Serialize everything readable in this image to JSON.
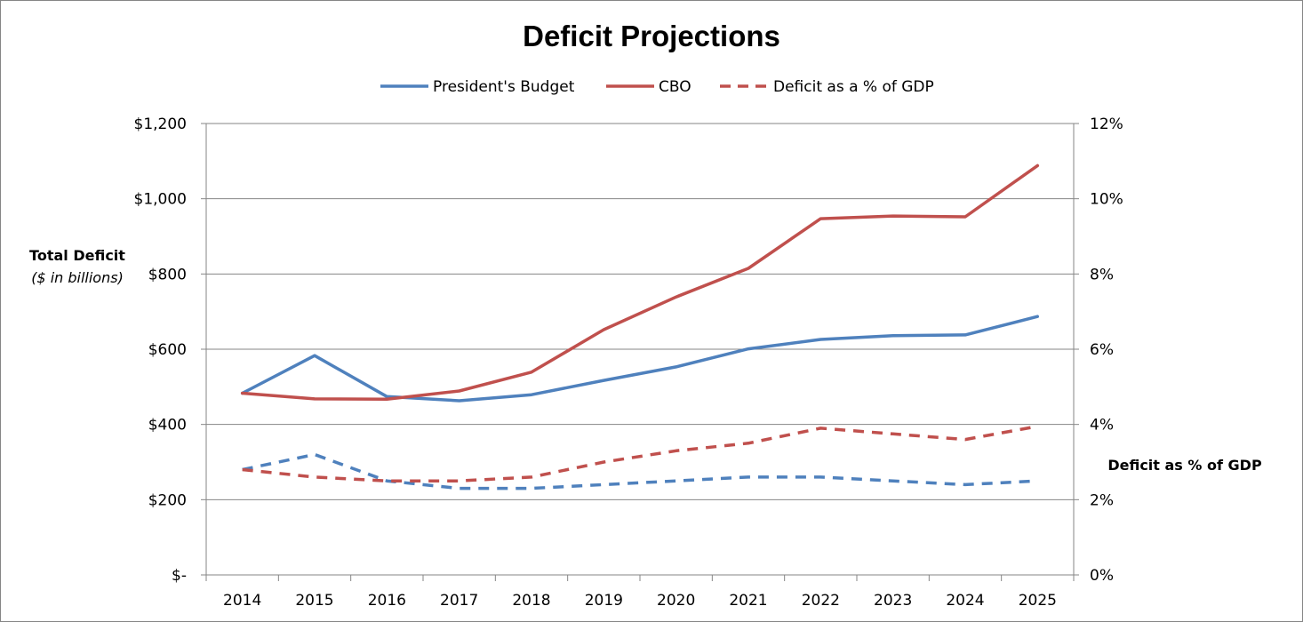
{
  "chart_data": {
    "type": "line",
    "title": "Deficit Projections",
    "x": [
      "2014",
      "2015",
      "2016",
      "2017",
      "2018",
      "2019",
      "2020",
      "2021",
      "2022",
      "2023",
      "2024",
      "2025"
    ],
    "ylabel": "Total Deficit",
    "ylabel_sub": "($ in billions)",
    "y2label": "Deficit as % of GDP",
    "ylim": [
      0,
      1200
    ],
    "y2lim": [
      0,
      12
    ],
    "yticks": [
      {
        "value": 0,
        "label": "$-"
      },
      {
        "value": 200,
        "label": "$200"
      },
      {
        "value": 400,
        "label": "$400"
      },
      {
        "value": 600,
        "label": "$600"
      },
      {
        "value": 800,
        "label": "$800"
      },
      {
        "value": 1000,
        "label": "$1,000"
      },
      {
        "value": 1200,
        "label": "$1,200"
      }
    ],
    "y2ticks": [
      {
        "value": 0,
        "label": "0%"
      },
      {
        "value": 2,
        "label": "2%"
      },
      {
        "value": 4,
        "label": "4%"
      },
      {
        "value": 6,
        "label": "6%"
      },
      {
        "value": 8,
        "label": "8%"
      },
      {
        "value": 10,
        "label": "10%"
      },
      {
        "value": 12,
        "label": "12%"
      }
    ],
    "grid": true,
    "legend_position": "top",
    "legend": [
      {
        "label": "President's Budget",
        "color": "#4F81BD",
        "dash": false
      },
      {
        "label": "CBO",
        "color": "#C0504D",
        "dash": false
      },
      {
        "label": "Deficit as a % of GDP",
        "color": "#C0504D",
        "dash": true
      }
    ],
    "series": [
      {
        "key": "pb",
        "color": "#4F81BD",
        "axis": "left",
        "dashed": false,
        "values": [
          483,
          583,
          474,
          463,
          479,
          517,
          553,
          601,
          626,
          636,
          638,
          687
        ]
      },
      {
        "key": "cbo",
        "color": "#C0504D",
        "axis": "left",
        "dashed": false,
        "values": [
          483,
          468,
          467,
          489,
          539,
          652,
          739,
          815,
          947,
          954,
          952,
          1088
        ]
      },
      {
        "key": "pb_gdp",
        "color": "#4F81BD",
        "axis": "right",
        "dashed": true,
        "values": [
          2.8,
          3.2,
          2.5,
          2.3,
          2.3,
          2.4,
          2.5,
          2.6,
          2.6,
          2.5,
          2.4,
          2.5
        ]
      },
      {
        "key": "cbo_gdp",
        "color": "#C0504D",
        "axis": "right",
        "dashed": true,
        "values": [
          2.8,
          2.6,
          2.5,
          2.5,
          2.6,
          3.0,
          3.3,
          3.5,
          3.9,
          3.75,
          3.6,
          3.95
        ]
      }
    ]
  }
}
